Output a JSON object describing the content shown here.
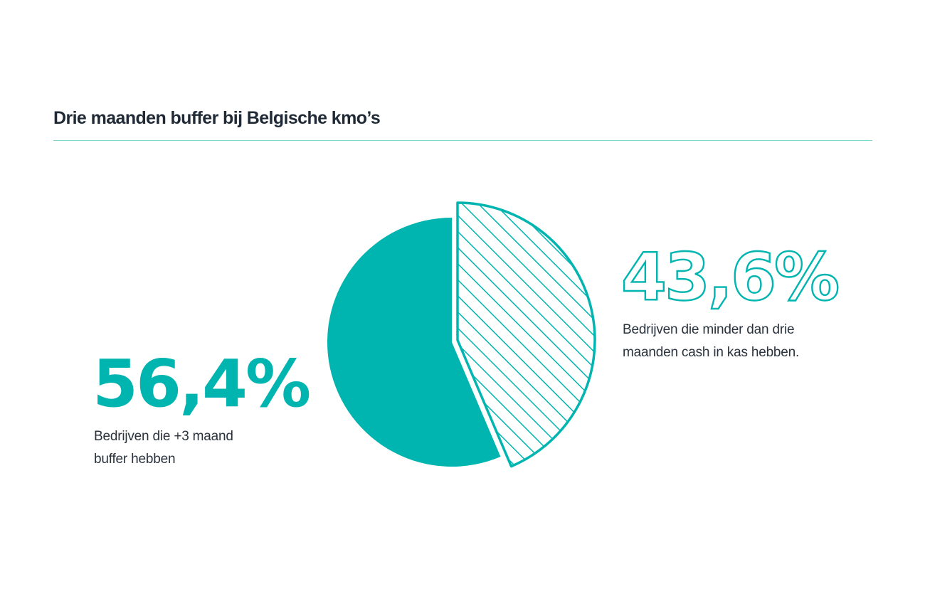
{
  "title": "Drie maanden buffer bij Belgische kmo’s",
  "colors": {
    "accent": "#00b5b0",
    "text": "#1f2a36",
    "rule": "#7fd6d2"
  },
  "chart_data": {
    "type": "pie",
    "title": "Drie maanden buffer bij Belgische kmo’s",
    "slices": [
      {
        "value": 56.4,
        "value_label": "56,4%",
        "label_lines": [
          "Bedrijven die +3 maand",
          "buffer hebben"
        ],
        "style": "solid",
        "color": "#00b5b0"
      },
      {
        "value": 43.6,
        "value_label": "43,6%",
        "label_lines": [
          "Bedrijven die minder dan drie",
          "maanden cash in kas hebben."
        ],
        "style": "hatched-outline-exploded",
        "color": "#00b5b0"
      }
    ],
    "start_angle": "12 o'clock, clockwise, hatched slice first"
  }
}
